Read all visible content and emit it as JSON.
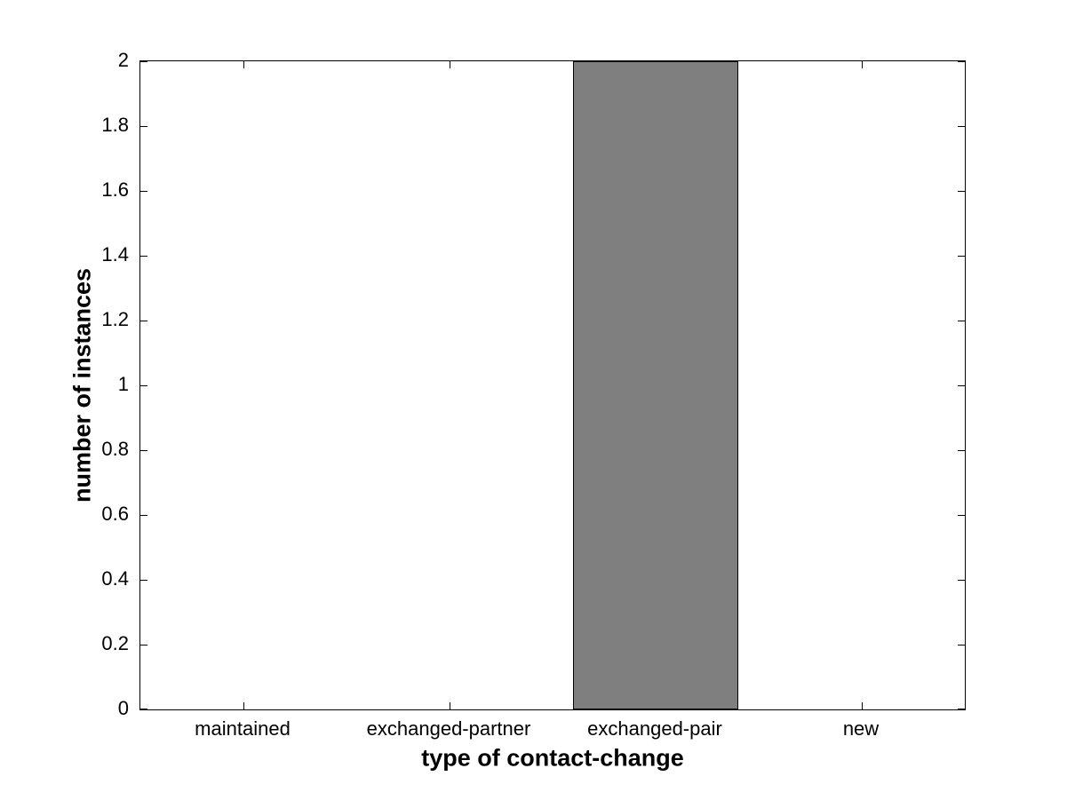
{
  "figure": {
    "background_color": "#ffffff",
    "axis_color": "#000000"
  },
  "chart_data": {
    "type": "bar",
    "title": "",
    "xlabel": "type of contact-change",
    "ylabel": "number of instances",
    "categories": [
      "maintained",
      "exchanged-partner",
      "exchanged-pair",
      "new"
    ],
    "values": [
      0,
      0,
      2,
      0
    ],
    "ylim": [
      0,
      2
    ],
    "yticks": [
      0,
      0.2,
      0.4,
      0.6,
      0.8,
      1,
      1.2,
      1.4,
      1.6,
      1.8,
      2
    ],
    "ytick_labels": [
      "0",
      "0.2",
      "0.4",
      "0.6",
      "0.8",
      "1",
      "1.2",
      "1.4",
      "1.6",
      "1.8",
      "2"
    ],
    "bar_width_fraction": 0.8,
    "bar_color": "#7f7f7f",
    "bar_edge_color": "#000000",
    "grid": false,
    "legend": null,
    "box": true,
    "tick_direction": "in"
  }
}
